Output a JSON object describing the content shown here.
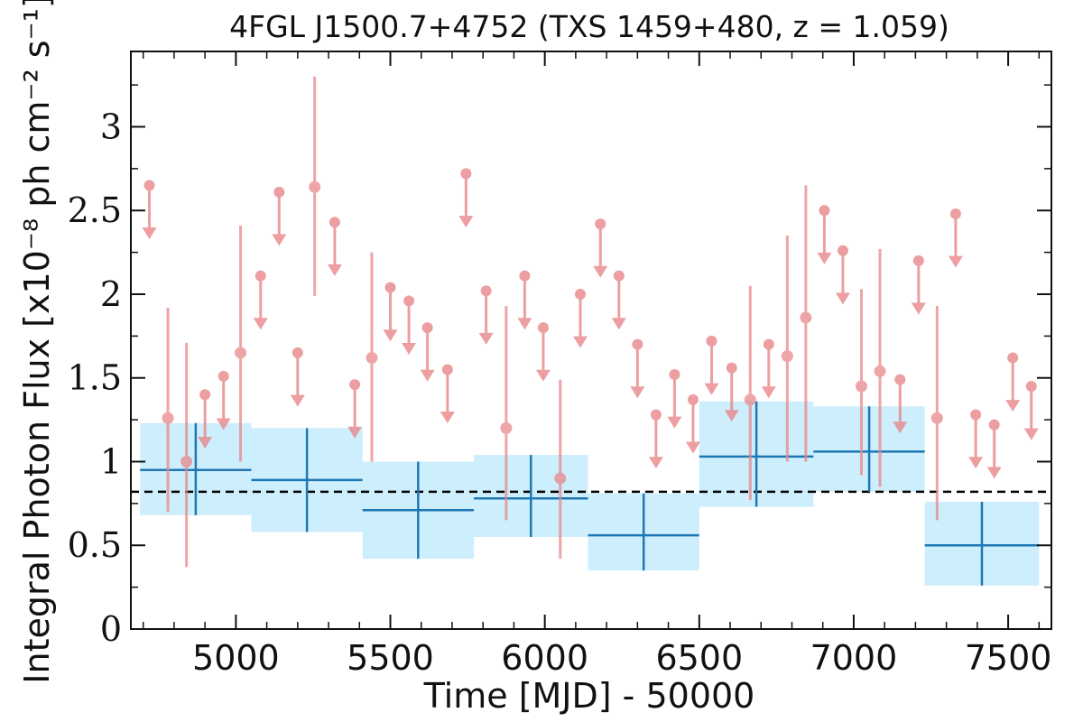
{
  "chart_data": {
    "type": "scatter",
    "title": "4FGL J1500.7+4752 (TXS 1459+480, z = 1.059)",
    "xlabel": "Time [MJD] - 50000",
    "ylabel": "Integral Photon Flux [x10⁻⁸ ph cm⁻² s⁻¹]",
    "xlim": [
      4660,
      7640
    ],
    "ylim": [
      0,
      3.45
    ],
    "x_ticks": [
      5000,
      5500,
      6000,
      6500,
      7000,
      7500
    ],
    "x_tick_labels": [
      "5000",
      "5500",
      "6000",
      "6500",
      "7000",
      "7500"
    ],
    "y_ticks": [
      0,
      0.5,
      1,
      1.5,
      2,
      2.5,
      3
    ],
    "y_tick_labels": [
      "0",
      "0.5",
      "1",
      "1.5",
      "2",
      "2.5",
      "3"
    ],
    "grid": false,
    "colors": {
      "points": "#e8878a",
      "binned_line": "#1f77b4",
      "binned_fill": "#cdeefc",
      "mean_line": "#000000"
    },
    "mean_flux": 0.82,
    "binned": [
      {
        "x_center": 4870,
        "x_lo": 4690,
        "x_hi": 5050,
        "y": 0.95,
        "y_lo": 0.68,
        "y_hi": 1.23
      },
      {
        "x_center": 5230,
        "x_lo": 5050,
        "x_hi": 5410,
        "y": 0.89,
        "y_lo": 0.58,
        "y_hi": 1.2
      },
      {
        "x_center": 5590,
        "x_lo": 5410,
        "x_hi": 5770,
        "y": 0.71,
        "y_lo": 0.42,
        "y_hi": 1.0
      },
      {
        "x_center": 5955,
        "x_lo": 5770,
        "x_hi": 6140,
        "y": 0.78,
        "y_lo": 0.55,
        "y_hi": 1.04
      },
      {
        "x_center": 6320,
        "x_lo": 6140,
        "x_hi": 6500,
        "y": 0.56,
        "y_lo": 0.35,
        "y_hi": 0.81
      },
      {
        "x_center": 6685,
        "x_lo": 6500,
        "x_hi": 6870,
        "y": 1.03,
        "y_lo": 0.73,
        "y_hi": 1.36
      },
      {
        "x_center": 7050,
        "x_lo": 6870,
        "x_hi": 7230,
        "y": 1.06,
        "y_lo": 0.82,
        "y_hi": 1.33
      },
      {
        "x_center": 7415,
        "x_lo": 7230,
        "x_hi": 7600,
        "y": 0.5,
        "y_lo": 0.26,
        "y_hi": 0.76
      }
    ],
    "detections": [
      {
        "x": 4780,
        "y": 1.26,
        "y_lo": 0.7,
        "y_hi": 1.92
      },
      {
        "x": 4840,
        "y": 1.0,
        "y_lo": 0.37,
        "y_hi": 1.71
      },
      {
        "x": 5015,
        "y": 1.65,
        "y_lo": 1.0,
        "y_hi": 2.41
      },
      {
        "x": 5255,
        "y": 2.64,
        "y_lo": 1.99,
        "y_hi": 3.3
      },
      {
        "x": 5440,
        "y": 1.62,
        "y_lo": 1.0,
        "y_hi": 2.25
      },
      {
        "x": 5875,
        "y": 1.2,
        "y_lo": 0.65,
        "y_hi": 1.93
      },
      {
        "x": 6050,
        "y": 0.9,
        "y_lo": 0.42,
        "y_hi": 1.49
      },
      {
        "x": 6665,
        "y": 1.37,
        "y_lo": 0.77,
        "y_hi": 2.05
      },
      {
        "x": 6785,
        "y": 1.63,
        "y_lo": 1.0,
        "y_hi": 2.35
      },
      {
        "x": 6845,
        "y": 1.86,
        "y_lo": 1.0,
        "y_hi": 2.65
      },
      {
        "x": 7025,
        "y": 1.45,
        "y_lo": 0.92,
        "y_hi": 2.03
      },
      {
        "x": 7085,
        "y": 1.54,
        "y_lo": 0.85,
        "y_hi": 2.27
      },
      {
        "x": 7270,
        "y": 1.26,
        "y_lo": 0.65,
        "y_hi": 1.93
      }
    ],
    "upper_limits": [
      {
        "x": 4720,
        "y": 2.65
      },
      {
        "x": 4900,
        "y": 1.4
      },
      {
        "x": 4960,
        "y": 1.51
      },
      {
        "x": 5080,
        "y": 2.11
      },
      {
        "x": 5140,
        "y": 2.61
      },
      {
        "x": 5200,
        "y": 1.65
      },
      {
        "x": 5320,
        "y": 2.43
      },
      {
        "x": 5385,
        "y": 1.46
      },
      {
        "x": 5500,
        "y": 2.04
      },
      {
        "x": 5560,
        "y": 1.96
      },
      {
        "x": 5620,
        "y": 1.8
      },
      {
        "x": 5685,
        "y": 1.55
      },
      {
        "x": 5745,
        "y": 2.72
      },
      {
        "x": 5810,
        "y": 2.02
      },
      {
        "x": 5935,
        "y": 2.11
      },
      {
        "x": 5995,
        "y": 1.8
      },
      {
        "x": 6115,
        "y": 2.0
      },
      {
        "x": 6180,
        "y": 2.42
      },
      {
        "x": 6240,
        "y": 2.11
      },
      {
        "x": 6300,
        "y": 1.7
      },
      {
        "x": 6360,
        "y": 1.28
      },
      {
        "x": 6420,
        "y": 1.52
      },
      {
        "x": 6480,
        "y": 1.37
      },
      {
        "x": 6540,
        "y": 1.72
      },
      {
        "x": 6605,
        "y": 1.56
      },
      {
        "x": 6725,
        "y": 1.7
      },
      {
        "x": 6905,
        "y": 2.5
      },
      {
        "x": 6965,
        "y": 2.26
      },
      {
        "x": 7150,
        "y": 1.49
      },
      {
        "x": 7210,
        "y": 2.2
      },
      {
        "x": 7330,
        "y": 2.48
      },
      {
        "x": 7395,
        "y": 1.28
      },
      {
        "x": 7455,
        "y": 1.22
      },
      {
        "x": 7515,
        "y": 1.62
      },
      {
        "x": 7575,
        "y": 1.45
      }
    ]
  }
}
